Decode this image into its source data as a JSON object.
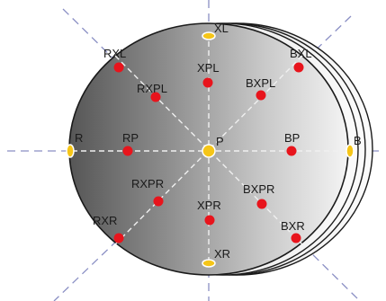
{
  "points": [
    {
      "id": "XL",
      "label": "XL",
      "kind": "anchor"
    },
    {
      "id": "RXL",
      "label": "RXL",
      "kind": "point"
    },
    {
      "id": "BXL",
      "label": "BXL",
      "kind": "point"
    },
    {
      "id": "XPL",
      "label": "XPL",
      "kind": "point"
    },
    {
      "id": "RXPL",
      "label": "RXPL",
      "kind": "point"
    },
    {
      "id": "BXPL",
      "label": "BXPL",
      "kind": "point"
    },
    {
      "id": "R",
      "label": "R",
      "kind": "anchor"
    },
    {
      "id": "RP",
      "label": "RP",
      "kind": "point"
    },
    {
      "id": "P",
      "label": "P",
      "kind": "anchor"
    },
    {
      "id": "BP",
      "label": "BP",
      "kind": "point"
    },
    {
      "id": "B",
      "label": "B",
      "kind": "anchor"
    },
    {
      "id": "RXPR",
      "label": "RXPR",
      "kind": "point"
    },
    {
      "id": "BXPR",
      "label": "BXPR",
      "kind": "point"
    },
    {
      "id": "XPR",
      "label": "XPR",
      "kind": "point"
    },
    {
      "id": "RXR",
      "label": "RXR",
      "kind": "point"
    },
    {
      "id": "BXR",
      "label": "BXR",
      "kind": "point"
    },
    {
      "id": "XR",
      "label": "XR",
      "kind": "anchor"
    }
  ],
  "colors": {
    "point": "#e8141c",
    "anchor_fill": "#f5c518",
    "anchor_stroke": "#ffffff",
    "guide": "#8a8fc4",
    "ellipse_dark": "#5e5e5e",
    "ellipse_light": "#f2f2f2"
  }
}
